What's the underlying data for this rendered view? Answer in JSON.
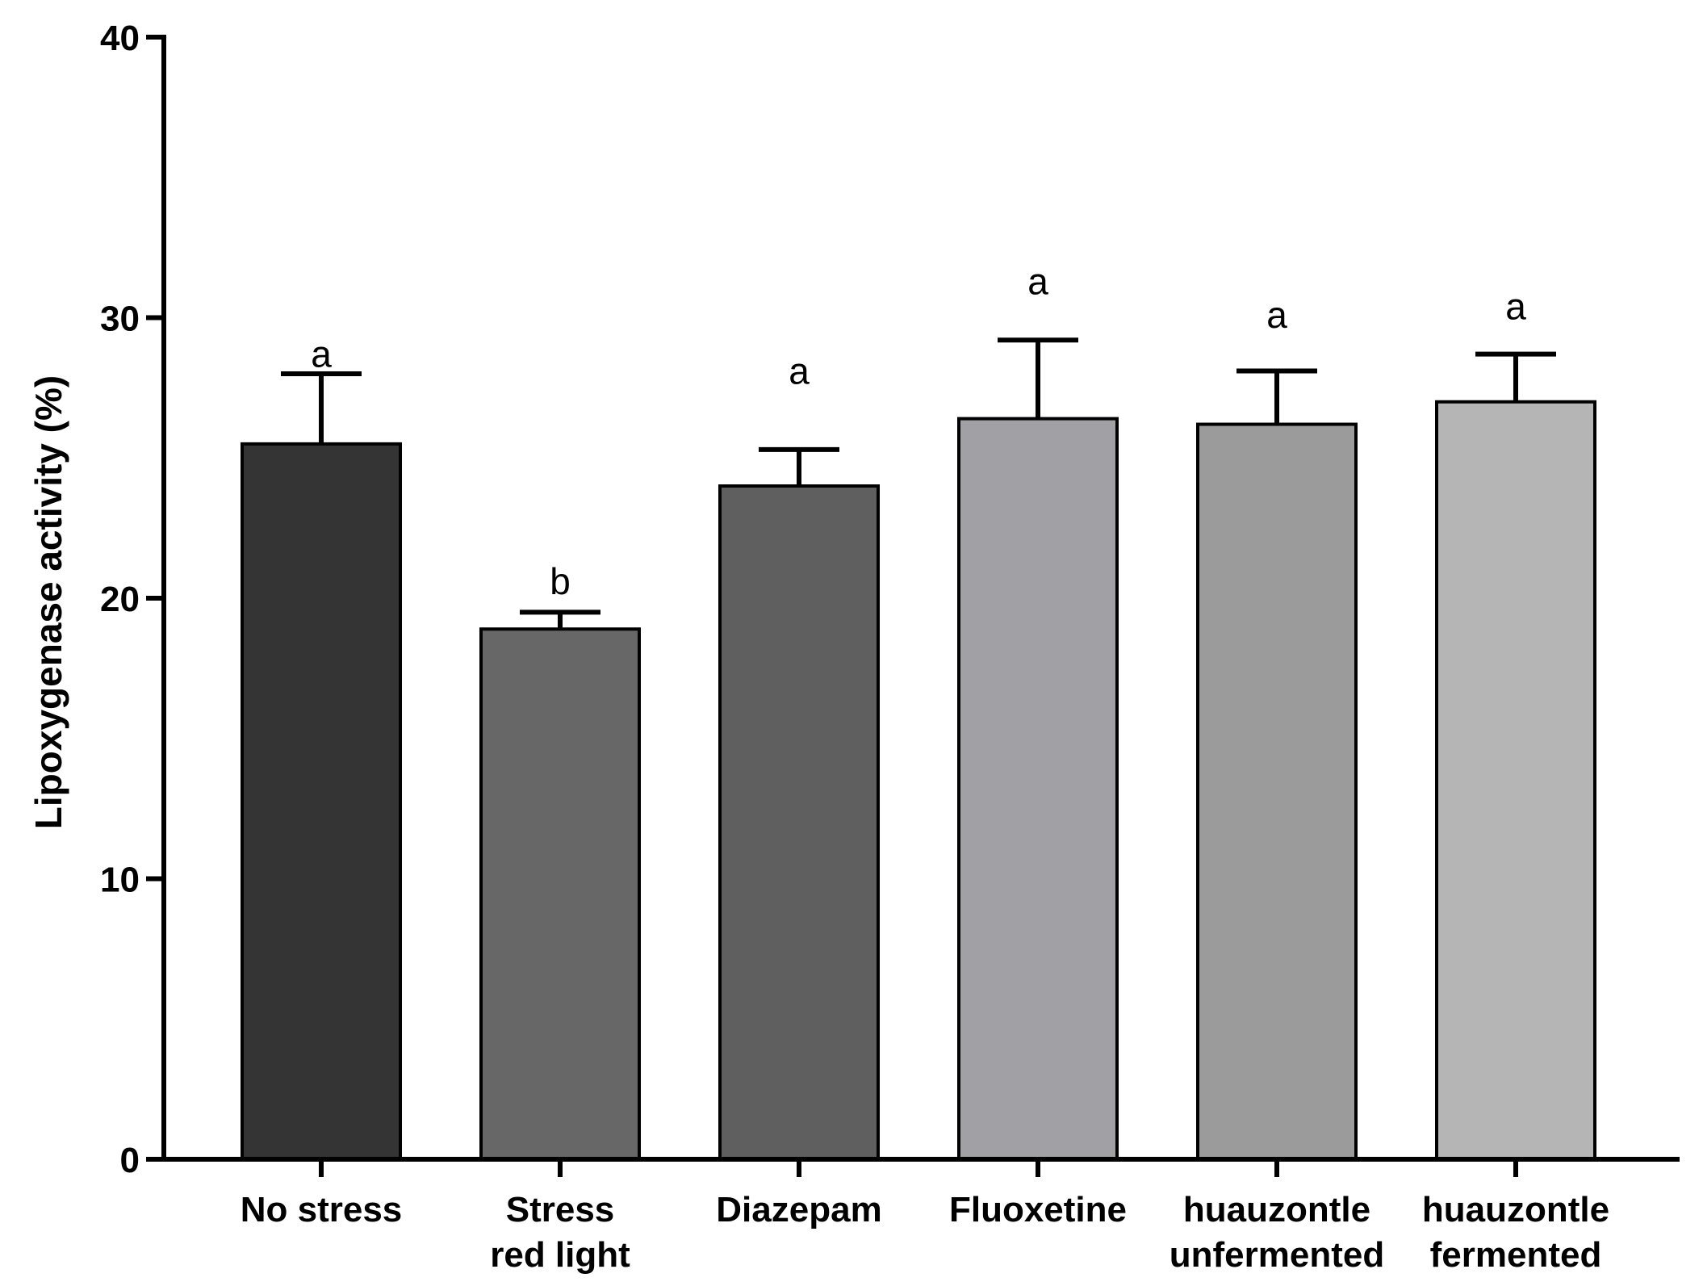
{
  "chart_data": {
    "type": "bar",
    "title": "",
    "xlabel": "",
    "ylabel": "Lipoxygenase activity (%)",
    "ylim": [
      0,
      40
    ],
    "yticks": [
      0,
      10,
      20,
      30,
      40
    ],
    "categories": [
      [
        "No stress"
      ],
      [
        "Stress",
        "red light"
      ],
      [
        "Diazepam"
      ],
      [
        "Fluoxetine"
      ],
      [
        "huauzontle",
        "unfermented"
      ],
      [
        "huauzontle",
        "fermented"
      ]
    ],
    "values": [
      25.5,
      18.9,
      24.0,
      26.4,
      26.2,
      27.0
    ],
    "errors": [
      2.5,
      0.6,
      1.3,
      2.8,
      1.9,
      1.7
    ],
    "significance": [
      "a",
      "b",
      "a",
      "a",
      "a",
      "a"
    ],
    "sig_values": [
      28.7,
      20.6,
      28.1,
      31.3,
      30.1,
      30.4
    ],
    "colors": [
      "#333433",
      "#666766",
      "#5f5f5f",
      "#a1a1a5",
      "#9a9b9a",
      "#b4b5b4"
    ]
  }
}
